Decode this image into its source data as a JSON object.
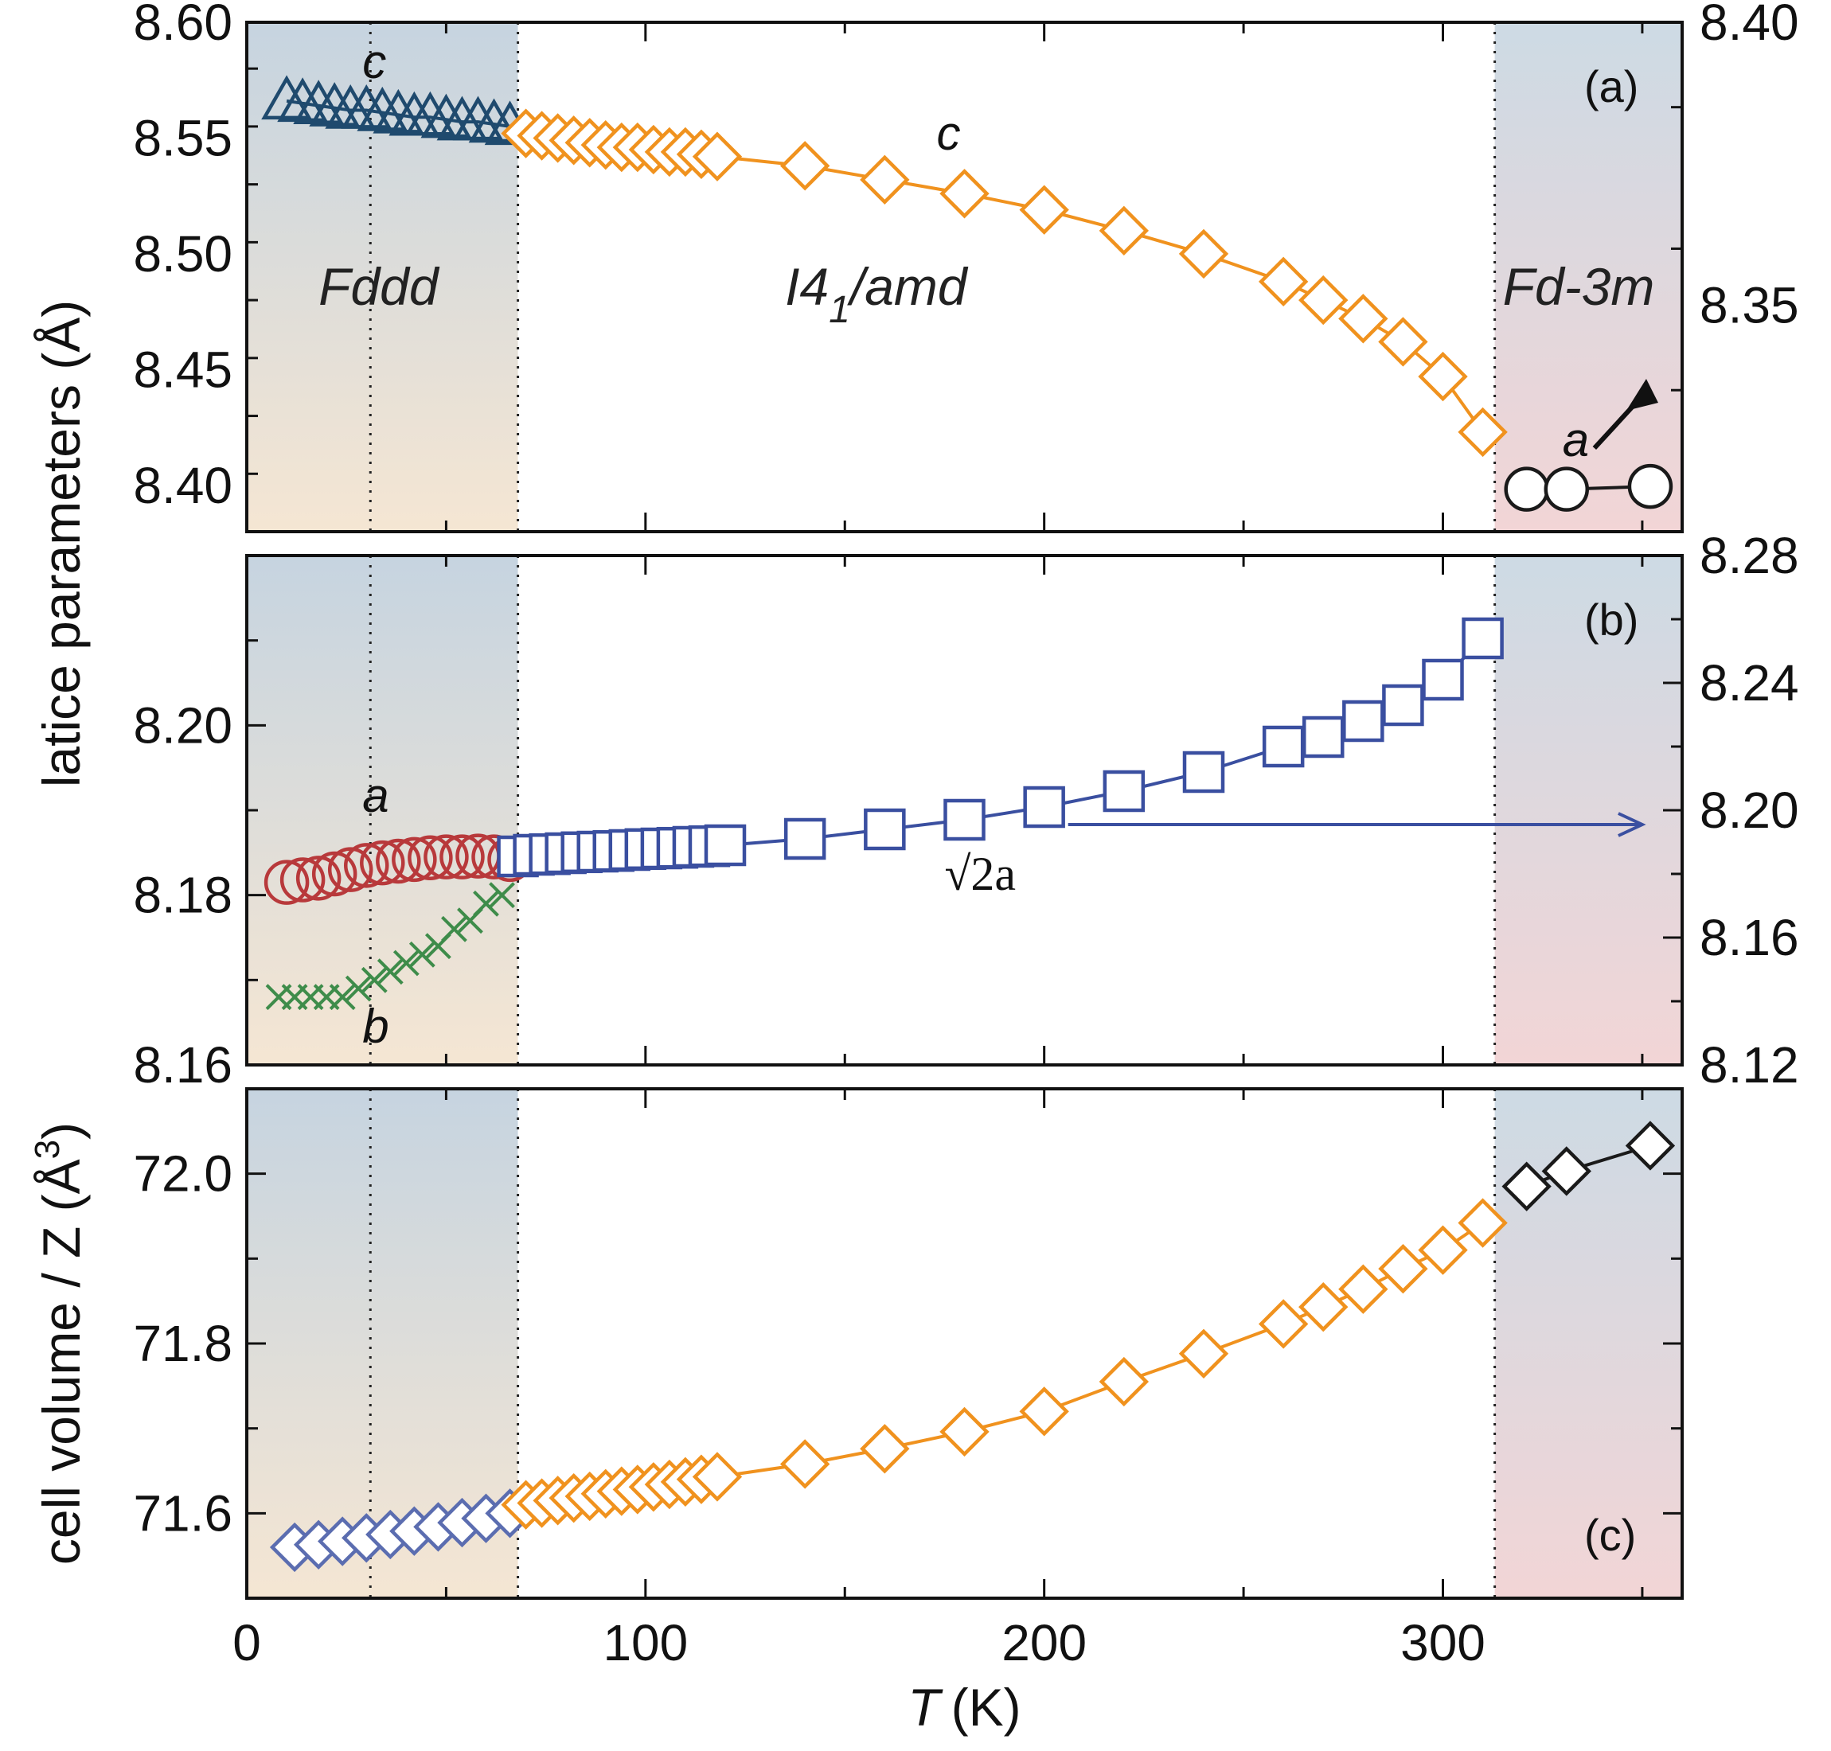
{
  "figure": {
    "shared_xlabel_italic": "T",
    "shared_xlabel_unit": "(K)",
    "shared_ylabel": "latice parameters (Å)",
    "phase_labels": {
      "fddd": "Fddd",
      "i41amd_a": "I4",
      "i41amd_sub": "1",
      "i41amd_b": "/amd",
      "fd3m": "Fd-3m"
    },
    "phase_boundaries_K": [
      31,
      68,
      313
    ],
    "colors": {
      "fddd_region_top": "#c6d4e0",
      "fddd_region_bottom": "#f5e6d3",
      "fd3m_region_top": "#cddae4",
      "fd3m_region_bottom": "#f2d5d6",
      "orange": "#f0921e",
      "navy": "#1f4a6e",
      "blue": "#3a4fa0",
      "red": "#b8393b",
      "green": "#3e8c4a",
      "black": "#1a1a1a",
      "slate": "#5b6db0"
    }
  },
  "chart_data": [
    {
      "panel": "a",
      "type": "scatter",
      "panel_label": "(a)",
      "xlim": [
        0,
        360
      ],
      "ylim": [
        8.38,
        8.6
      ],
      "yticks": [
        "8.40",
        "8.45",
        "8.50",
        "8.55",
        "8.60"
      ],
      "right_ylim": [
        8.31,
        8.4
      ],
      "right_yticks": [
        "8.35",
        "8.40"
      ],
      "annotations": {
        "c_top": "c",
        "c_mid": "c",
        "a": "a"
      },
      "series": [
        {
          "name": "c (Fddd)",
          "marker": "triangle",
          "color": "#1f4a6e",
          "axis": "left",
          "x": [
            10,
            14,
            18,
            22,
            26,
            30,
            34,
            38,
            42,
            46,
            50,
            54,
            58,
            62,
            66
          ],
          "y": [
            8.566,
            8.565,
            8.564,
            8.563,
            8.562,
            8.562,
            8.561,
            8.56,
            8.559,
            8.559,
            8.558,
            8.557,
            8.557,
            8.556,
            8.555
          ]
        },
        {
          "name": "c (I41/amd)",
          "marker": "diamond",
          "color": "#f0921e",
          "axis": "left",
          "x": [
            70,
            74,
            78,
            82,
            86,
            90,
            94,
            98,
            102,
            106,
            110,
            114,
            118,
            140,
            160,
            180,
            200,
            220,
            240,
            260,
            270,
            280,
            290,
            300,
            310
          ],
          "y": [
            8.552,
            8.551,
            8.55,
            8.549,
            8.548,
            8.547,
            8.546,
            8.546,
            8.545,
            8.544,
            8.544,
            8.543,
            8.542,
            8.538,
            8.532,
            8.526,
            8.519,
            8.51,
            8.5,
            8.488,
            8.48,
            8.472,
            8.462,
            8.447,
            8.423
          ]
        },
        {
          "name": "a (Fd-3m)",
          "marker": "circle",
          "color": "#1a1a1a",
          "axis": "right",
          "x": [
            321,
            331,
            352
          ],
          "y": [
            8.3175,
            8.3175,
            8.318
          ]
        }
      ]
    },
    {
      "panel": "b",
      "type": "scatter",
      "panel_label": "(b)",
      "xlim": [
        0,
        360
      ],
      "ylim": [
        8.16,
        8.22
      ],
      "yticks": [
        "8.16",
        "8.18",
        "8.20"
      ],
      "right_ylim": [
        8.12,
        8.28
      ],
      "right_yticks": [
        "8.12",
        "8.16",
        "8.20",
        "8.24",
        "8.28"
      ],
      "annotations": {
        "a": "a",
        "b": "b",
        "sqrt2a": "√2a"
      },
      "series": [
        {
          "name": "a (Fddd)",
          "marker": "circle",
          "color": "#b8393b",
          "axis": "left",
          "x": [
            10,
            14,
            18,
            22,
            26,
            30,
            34,
            38,
            42,
            46,
            50,
            54,
            58,
            62,
            66
          ],
          "y": [
            8.1815,
            8.1818,
            8.182,
            8.1825,
            8.183,
            8.1835,
            8.1838,
            8.184,
            8.1842,
            8.1844,
            8.1845,
            8.1845,
            8.1846,
            8.1845,
            8.1842
          ]
        },
        {
          "name": "b (Fddd)",
          "marker": "cross",
          "color": "#3e8c4a",
          "axis": "left",
          "x": [
            8,
            12,
            16,
            20,
            24,
            28,
            32,
            36,
            40,
            44,
            48,
            52,
            56,
            60,
            64
          ],
          "y": [
            8.168,
            8.168,
            8.168,
            8.168,
            8.168,
            8.169,
            8.17,
            8.171,
            8.172,
            8.173,
            8.174,
            8.176,
            8.177,
            8.179,
            8.18
          ]
        },
        {
          "name": "√2a (I41/amd)",
          "marker": "square",
          "color": "#3a4fa0",
          "axis": "right",
          "x": [
            68,
            72,
            76,
            80,
            84,
            88,
            92,
            96,
            100,
            104,
            108,
            112,
            116,
            120,
            140,
            160,
            180,
            200,
            220,
            240,
            260,
            270,
            280,
            290,
            300,
            310
          ],
          "y": [
            8.1855,
            8.186,
            8.1862,
            8.1865,
            8.1868,
            8.187,
            8.1872,
            8.1875,
            8.1878,
            8.188,
            8.1882,
            8.1885,
            8.1887,
            8.189,
            8.191,
            8.194,
            8.197,
            8.201,
            8.206,
            8.212,
            8.22,
            8.223,
            8.228,
            8.233,
            8.241,
            8.254
          ]
        }
      ]
    },
    {
      "panel": "c",
      "type": "scatter",
      "panel_label": "(c)",
      "xlim": [
        0,
        360
      ],
      "ylim": [
        71.5,
        72.1
      ],
      "yticks": [
        "71.6",
        "71.8",
        "72.0"
      ],
      "xticks": [
        "0",
        "100",
        "200",
        "300"
      ],
      "ylabel": "cell volume / Z (Å³)",
      "ylabel_main": "cell volume / Z (Å",
      "ylabel_sup": "3",
      "ylabel_close": ")",
      "series": [
        {
          "name": "Fddd",
          "marker": "diamond",
          "color": "#5b6db0",
          "x": [
            12,
            18,
            24,
            30,
            36,
            42,
            48,
            54,
            60,
            66
          ],
          "y": [
            71.56,
            71.563,
            71.567,
            71.571,
            71.575,
            71.579,
            71.584,
            71.589,
            71.594,
            71.6
          ]
        },
        {
          "name": "I41/amd",
          "marker": "diamond",
          "color": "#f0921e",
          "x": [
            70,
            74,
            78,
            82,
            86,
            90,
            94,
            98,
            102,
            106,
            110,
            114,
            118,
            140,
            160,
            180,
            200,
            220,
            240,
            260,
            270,
            280,
            290,
            300,
            310
          ],
          "y": [
            71.61,
            71.612,
            71.615,
            71.618,
            71.62,
            71.623,
            71.626,
            71.628,
            71.631,
            71.634,
            71.637,
            71.64,
            71.643,
            71.658,
            71.676,
            71.696,
            71.72,
            71.755,
            71.788,
            71.823,
            71.843,
            71.864,
            71.888,
            71.91,
            71.942
          ]
        },
        {
          "name": "Fd-3m",
          "marker": "diamond",
          "color": "#1a1a1a",
          "x": [
            321,
            331,
            352
          ],
          "y": [
            71.985,
            72.003,
            72.033
          ]
        }
      ]
    }
  ]
}
